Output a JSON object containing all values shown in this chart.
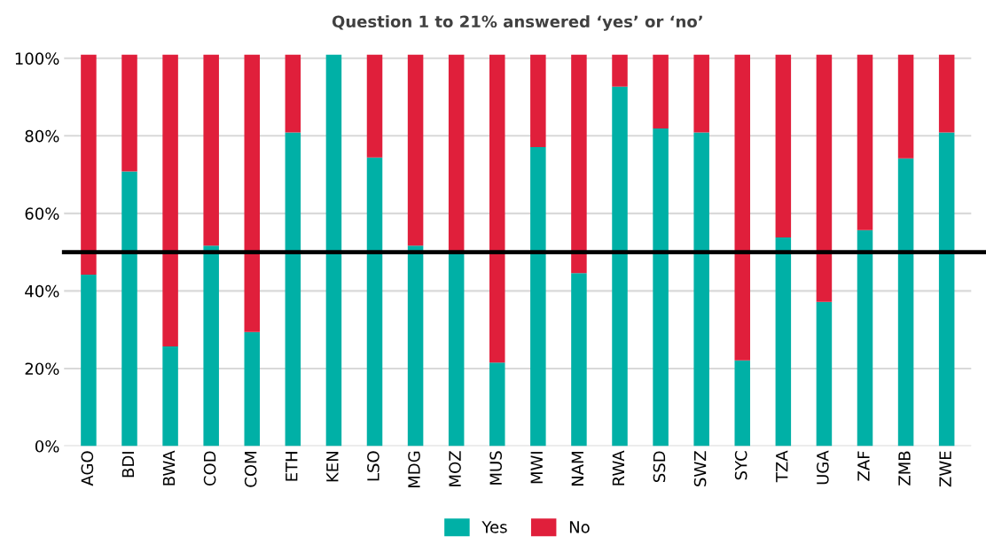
{
  "chart_data": {
    "type": "bar",
    "title": "Question 1 to 21% answered ‘yes’ or ‘no’",
    "stacked": true,
    "categories": [
      "AGO",
      "BDI",
      "BWA",
      "COD",
      "COM",
      "ETH",
      "KEN",
      "LSO",
      "MDG",
      "MOZ",
      "MUS",
      "MWI",
      "NAM",
      "RWA",
      "SSD",
      "SWZ",
      "SYC",
      "TZA",
      "UGA",
      "ZAF",
      "ZMB",
      "ZWE"
    ],
    "series": [
      {
        "name": "Yes",
        "color": "#00b0a6",
        "values": [
          44.2,
          70.8,
          25.7,
          51.7,
          29.4,
          80.9,
          101,
          74.4,
          51.7,
          50,
          21.5,
          77.1,
          44.6,
          92.7,
          81.9,
          80.9,
          22.1,
          53.8,
          37.2,
          55.7,
          74.2,
          80.9
        ]
      },
      {
        "name": "No",
        "color": "#e01f3b",
        "values": [
          56.8,
          30.2,
          75.3,
          49.3,
          71.6,
          20.1,
          0,
          26.6,
          49.3,
          51,
          79.5,
          23.9,
          56.4,
          8.3,
          19.1,
          20.1,
          78.9,
          47.2,
          63.8,
          45.3,
          26.8,
          20.1
        ]
      }
    ],
    "ylim": [
      0,
      101
    ],
    "yticks": [
      {
        "value": 0,
        "label": "0%"
      },
      {
        "value": 20,
        "label": "20%"
      },
      {
        "value": 40,
        "label": "40%"
      },
      {
        "value": 60,
        "label": "60%"
      },
      {
        "value": 80,
        "label": "80%"
      },
      {
        "value": 100,
        "label": "100%"
      }
    ],
    "grid": "y",
    "legend": "bottom",
    "ref_lines": [
      {
        "axis": "y",
        "value": 50,
        "color": "#000000"
      }
    ]
  }
}
